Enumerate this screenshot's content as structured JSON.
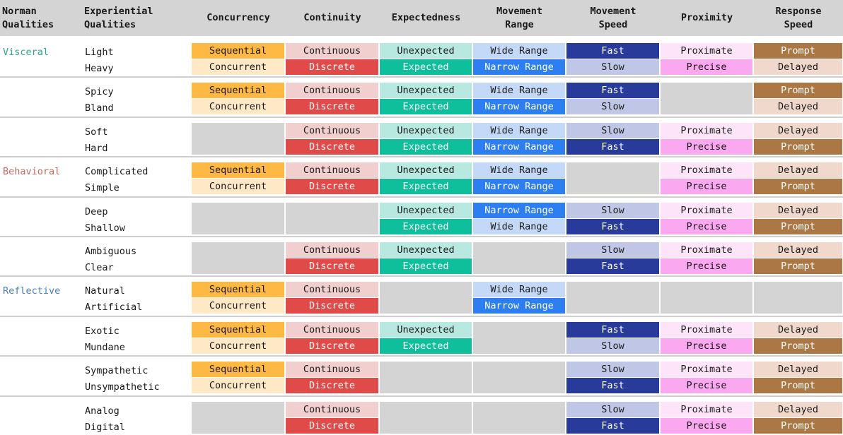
{
  "header": {
    "norman": "Norman\nQualities",
    "experiential": "Experiential\nQualities",
    "dimensions": [
      "Concurrency",
      "Continuity",
      "Expectedness",
      "Movement\nRange",
      "Movement\nSpeed",
      "Proximity",
      "Response\nSpeed"
    ]
  },
  "categories": [
    {
      "name": "Visceral",
      "color": "#2aa889",
      "first_group": 0
    },
    {
      "name": "Behavioral",
      "color": "#c46a63",
      "first_group": 3
    },
    {
      "name": "Reflective",
      "color": "#4b7fb8",
      "first_group": 6
    }
  ],
  "groups": [
    {
      "qualities": [
        "Light",
        "Heavy"
      ],
      "cells": [
        [
          "Sequential",
          "Concurrent"
        ],
        [
          "Continuous",
          "Discrete"
        ],
        [
          "Unexpected",
          "Expected"
        ],
        [
          "Wide Range",
          "Narrow Range"
        ],
        [
          "Fast",
          "Slow"
        ],
        [
          "Proximate",
          "Precise"
        ],
        [
          "Prompt",
          "Delayed"
        ]
      ]
    },
    {
      "qualities": [
        "Spicy",
        "Bland"
      ],
      "cells": [
        [
          "Sequential",
          "Concurrent"
        ],
        [
          "Continuous",
          "Discrete"
        ],
        [
          "Unexpected",
          "Expected"
        ],
        [
          "Wide Range",
          "Narrow Range"
        ],
        [
          "Fast",
          "Slow"
        ],
        null,
        [
          "Prompt",
          "Delayed"
        ]
      ]
    },
    {
      "qualities": [
        "Soft",
        "Hard"
      ],
      "cells": [
        null,
        [
          "Continuous",
          "Discrete"
        ],
        [
          "Unexpected",
          "Expected"
        ],
        [
          "Wide Range",
          "Narrow Range"
        ],
        [
          "Slow",
          "Fast"
        ],
        [
          "Proximate",
          "Precise"
        ],
        [
          "Delayed",
          "Prompt"
        ]
      ]
    },
    {
      "qualities": [
        "Complicated",
        "Simple"
      ],
      "cells": [
        [
          "Sequential",
          "Concurrent"
        ],
        [
          "Continuous",
          "Discrete"
        ],
        [
          "Unexpected",
          "Expected"
        ],
        [
          "Wide Range",
          "Narrow Range"
        ],
        null,
        [
          "Proximate",
          "Precise"
        ],
        [
          "Delayed",
          "Prompt"
        ]
      ]
    },
    {
      "qualities": [
        "Deep",
        "Shallow"
      ],
      "cells": [
        null,
        null,
        [
          null,
          "Expected"
        ],
        [
          "Narrow Range",
          "Wide Range"
        ],
        [
          "Slow",
          "Fast"
        ],
        [
          "Proximate",
          "Precise"
        ],
        [
          "Delayed",
          "Prompt"
        ]
      ],
      "unexpected_top": "Unexpected"
    },
    {
      "qualities": [
        "Ambiguous",
        "Clear"
      ],
      "cells": [
        null,
        [
          "Continuous",
          "Discrete"
        ],
        [
          "Unexpected",
          "Expected"
        ],
        null,
        [
          "Slow",
          "Fast"
        ],
        [
          "Proximate",
          "Precise"
        ],
        [
          "Delayed",
          "Prompt"
        ]
      ]
    },
    {
      "qualities": [
        "Natural",
        "Artificial"
      ],
      "cells": [
        [
          "Sequential",
          "Concurrent"
        ],
        [
          "Continuous",
          "Discrete"
        ],
        null,
        [
          "Wide Range",
          "Narrow Range"
        ],
        null,
        null,
        null
      ]
    },
    {
      "qualities": [
        "Exotic",
        "Mundane"
      ],
      "cells": [
        [
          "Sequential",
          "Concurrent"
        ],
        [
          "Continuous",
          "Discrete"
        ],
        [
          "Unexpected",
          "Expected"
        ],
        null,
        [
          "Fast",
          "Slow"
        ],
        [
          "Proximate",
          "Precise"
        ],
        [
          "Delayed",
          "Prompt"
        ]
      ]
    },
    {
      "qualities": [
        "Sympathetic",
        "Unsympathetic"
      ],
      "cells": [
        [
          "Sequential",
          "Concurrent"
        ],
        [
          "Continuous",
          "Discrete"
        ],
        null,
        null,
        [
          "Slow",
          "Fast"
        ],
        [
          "Proximate",
          "Precise"
        ],
        [
          "Delayed",
          "Prompt"
        ]
      ]
    },
    {
      "qualities": [
        "Analog",
        "Digital"
      ],
      "cells": [
        null,
        [
          "Continuous",
          "Discrete"
        ],
        null,
        null,
        [
          "Slow",
          "Fast"
        ],
        [
          "Proximate",
          "Precise"
        ],
        [
          "Delayed",
          "Prompt"
        ]
      ]
    }
  ],
  "colors": {
    "Sequential": "#fdb944",
    "Concurrent": "#ffe8c6",
    "Continuous": "#f1cfcf",
    "Discrete": "#e04a49",
    "Unexpected": "#b7e9e0",
    "Expected": "#0fbe9a",
    "Wide Range": "#c4d9f8",
    "Narrow Range": "#2c7ef1",
    "Fast": "#283a9a",
    "Slow": "#c0c7e6",
    "Proximate": "#fde4f8",
    "Precise": "#faa8ef",
    "Prompt": "#ab7845",
    "Delayed": "#f0d9cc",
    "empty": "#d4d4d4",
    "header": "#d4d4d4"
  }
}
